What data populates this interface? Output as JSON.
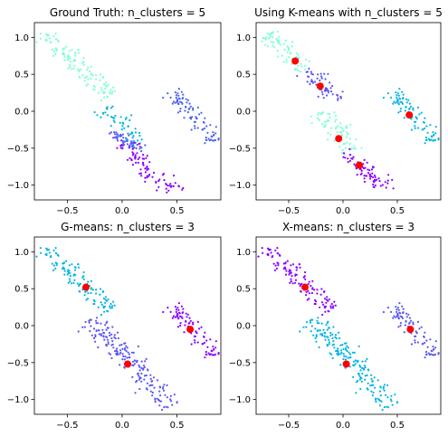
{
  "chart_data": [
    {
      "type": "scatter",
      "title": "Ground Truth: n_clusters = 5",
      "xlim": [
        -0.8,
        0.9
      ],
      "ylim": [
        -1.2,
        1.2
      ],
      "xticks": [
        -0.5,
        0.0,
        0.5
      ],
      "yticks": [
        1.0,
        0.5,
        0.0,
        -0.5,
        -1.0
      ],
      "xtick_labels": [
        "−0.5",
        "0.0",
        "0.5"
      ],
      "ytick_labels": [
        "1.0",
        "0.5",
        "0.0",
        "−0.5",
        "−1.0"
      ],
      "clusters": [
        {
          "color": "#7fffd4",
          "ref": "A"
        },
        {
          "color": "#00b4e6",
          "ref": "C"
        },
        {
          "color": "#5a55f5",
          "ref": "D"
        },
        {
          "color": "#8b00ff",
          "ref": "E"
        },
        {
          "color": "#4b62f0",
          "ref": "B"
        }
      ],
      "centers": []
    },
    {
      "type": "scatter",
      "title": "Using K-means with n_clusters = 5",
      "xlim": [
        -0.8,
        0.9
      ],
      "ylim": [
        -1.2,
        1.2
      ],
      "xticks": [
        -0.5,
        0.0,
        0.5
      ],
      "yticks": [
        1.0,
        0.5,
        0.0,
        -0.5,
        -1.0
      ],
      "xtick_labels": [
        "−0.5",
        "0.0",
        "0.5"
      ],
      "ytick_labels": [
        "1.0",
        "0.5",
        "0.0",
        "−0.5",
        "−1.0"
      ],
      "clusters": [
        {
          "color": "#7fffd4",
          "ref": "K1"
        },
        {
          "color": "#5a55f5",
          "ref": "K2"
        },
        {
          "color": "#7fffd4",
          "ref": "K3"
        },
        {
          "color": "#8b00ff",
          "ref": "K4"
        },
        {
          "color": "#00b4e6",
          "ref": "B"
        }
      ],
      "centers": [
        {
          "x": -0.44,
          "y": 0.68
        },
        {
          "x": -0.21,
          "y": 0.34
        },
        {
          "x": -0.04,
          "y": -0.37
        },
        {
          "x": 0.15,
          "y": -0.73
        },
        {
          "x": 0.61,
          "y": -0.05
        }
      ]
    },
    {
      "type": "scatter",
      "title": "G-means: n_clusters = 3",
      "xlim": [
        -0.8,
        0.9
      ],
      "ylim": [
        -1.2,
        1.2
      ],
      "xticks": [
        -0.5,
        0.0,
        0.5
      ],
      "yticks": [
        1.0,
        0.5,
        0.0,
        -0.5,
        -1.0
      ],
      "xtick_labels": [
        "−0.5",
        "0.0",
        "0.5"
      ],
      "ytick_labels": [
        "1.0",
        "0.5",
        "0.0",
        "−0.5",
        "−1.0"
      ],
      "clusters": [
        {
          "color": "#00b4e6",
          "ref": "A"
        },
        {
          "color": "#5a55f5",
          "ref": "LOWER"
        },
        {
          "color": "#8b00ff",
          "ref": "B"
        }
      ],
      "centers": [
        {
          "x": -0.33,
          "y": 0.52
        },
        {
          "x": 0.05,
          "y": -0.52
        },
        {
          "x": 0.62,
          "y": -0.05
        }
      ]
    },
    {
      "type": "scatter",
      "title": "X-means: n_clusters = 3",
      "xlim": [
        -0.8,
        0.9
      ],
      "ylim": [
        -1.2,
        1.2
      ],
      "xticks": [
        -0.5,
        0.0,
        0.5
      ],
      "yticks": [
        1.0,
        0.5,
        0.0,
        -0.5,
        -1.0
      ],
      "xtick_labels": [
        "−0.5",
        "0.0",
        "0.5"
      ],
      "ytick_labels": [
        "1.0",
        "0.5",
        "0.0",
        "−0.5",
        "−1.0"
      ],
      "clusters": [
        {
          "color": "#8b00ff",
          "ref": "A"
        },
        {
          "color": "#00b4e6",
          "ref": "LOWER"
        },
        {
          "color": "#5a55f5",
          "ref": "B"
        }
      ],
      "centers": [
        {
          "x": -0.35,
          "y": 0.52
        },
        {
          "x": 0.03,
          "y": -0.52
        },
        {
          "x": 0.62,
          "y": -0.05
        }
      ]
    }
  ],
  "source_clusters": {
    "A": {
      "start": [
        -0.7,
        1.05
      ],
      "end": [
        -0.1,
        0.2
      ],
      "width": 0.05,
      "count": 120
    },
    "C": {
      "start": [
        -0.15,
        0.05
      ],
      "end": [
        0.15,
        -0.45
      ],
      "width": 0.05,
      "count": 55
    },
    "D": {
      "start": [
        -0.1,
        -0.3
      ],
      "end": [
        0.2,
        -0.55
      ],
      "width": 0.04,
      "count": 55
    },
    "E": {
      "start": [
        0.0,
        -0.45
      ],
      "end": [
        0.45,
        -1.1
      ],
      "width": 0.05,
      "count": 80
    },
    "B": {
      "start": [
        0.45,
        0.3
      ],
      "end": [
        0.85,
        -0.4
      ],
      "width": 0.05,
      "count": 90
    },
    "K1": {
      "start": [
        -0.7,
        1.05
      ],
      "end": [
        -0.35,
        0.55
      ],
      "width": 0.05,
      "count": 75
    },
    "K2": {
      "start": [
        -0.35,
        0.55
      ],
      "end": [
        -0.05,
        0.15
      ],
      "width": 0.05,
      "count": 60
    },
    "K3": {
      "start": [
        -0.2,
        0.0
      ],
      "end": [
        0.1,
        -0.55
      ],
      "width": 0.05,
      "count": 70
    },
    "K4": {
      "start": [
        0.0,
        -0.55
      ],
      "end": [
        0.45,
        -1.1
      ],
      "width": 0.05,
      "count": 75
    },
    "LOWER": {
      "start": [
        -0.3,
        0.1
      ],
      "end": [
        0.45,
        -1.1
      ],
      "width": 0.06,
      "count": 190
    }
  }
}
